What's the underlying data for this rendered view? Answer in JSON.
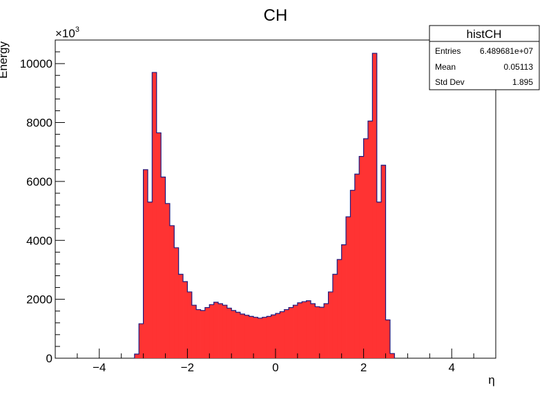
{
  "chart_data": {
    "type": "bar",
    "title": "CH",
    "xlabel": "η",
    "ylabel": "Energy",
    "y_multiplier_label": "×10",
    "y_multiplier_exponent": "3",
    "xlim": [
      -5,
      5
    ],
    "ylim": [
      0,
      10800
    ],
    "x_ticks": [
      -4,
      -2,
      0,
      2,
      4
    ],
    "x_tick_labels": [
      "−4",
      "−2",
      "0",
      "2",
      "4"
    ],
    "y_ticks": [
      0,
      2000,
      4000,
      6000,
      8000,
      10000
    ],
    "y_tick_labels": [
      "0",
      "2000",
      "4000",
      "6000",
      "8000",
      "10000"
    ],
    "bin_width": 0.1,
    "bin_edges_start": -3.2,
    "values": [
      140,
      1170,
      6400,
      5300,
      9700,
      7650,
      6150,
      5250,
      4500,
      3750,
      2850,
      2600,
      2250,
      1800,
      1650,
      1620,
      1720,
      1820,
      1900,
      1850,
      1800,
      1700,
      1620,
      1560,
      1500,
      1460,
      1420,
      1390,
      1360,
      1390,
      1420,
      1470,
      1520,
      1580,
      1650,
      1720,
      1800,
      1880,
      1920,
      1950,
      1850,
      1750,
      1730,
      1850,
      2250,
      2850,
      3350,
      3850,
      4800,
      5700,
      6250,
      6850,
      7450,
      8050,
      10350,
      5300,
      6550,
      1300,
      160
    ],
    "fill_color": "#ff3333",
    "edge_color": "#1a1a80",
    "stats_box": {
      "title": "histCH",
      "rows": [
        {
          "label": "Entries",
          "value": "6.489681e+07"
        },
        {
          "label": "Mean",
          "value": "0.05113"
        },
        {
          "label": "Std Dev",
          "value": "1.895"
        }
      ]
    }
  }
}
